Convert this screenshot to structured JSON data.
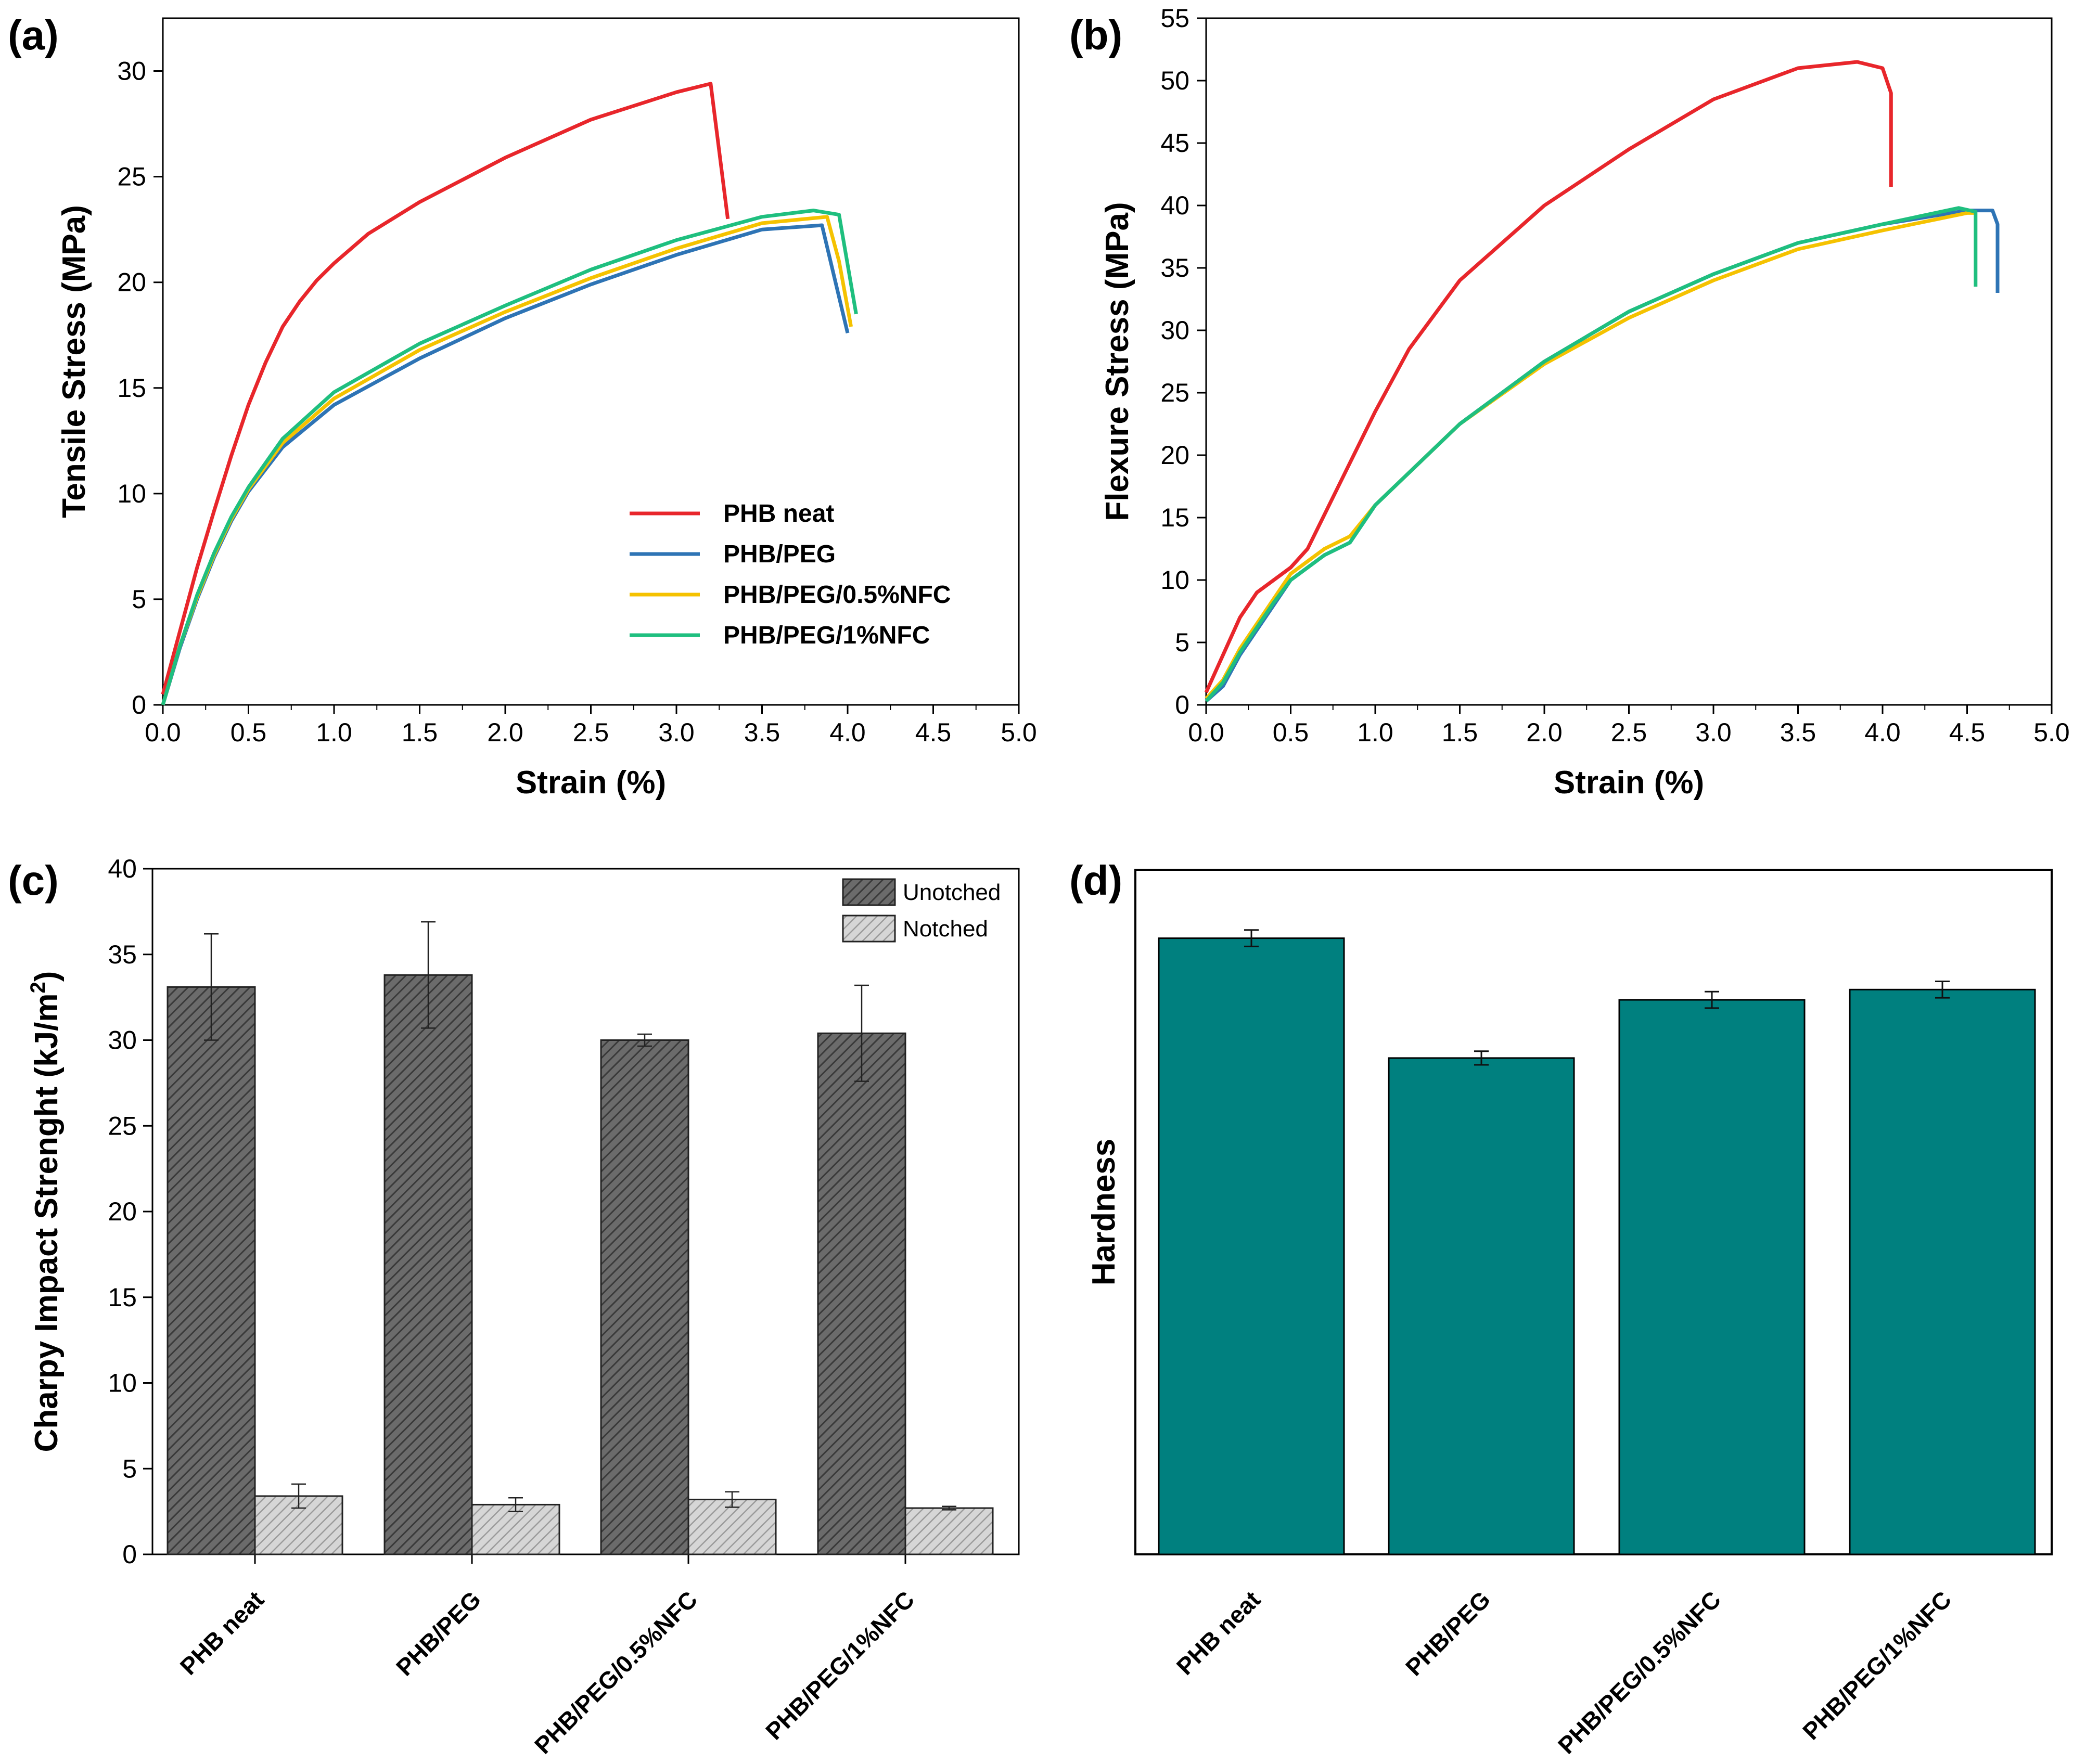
{
  "colors": {
    "phb_neat": "#e8262b",
    "phb_peg": "#2e74b5",
    "phb_peg_05nfc": "#f5c200",
    "phb_peg_1nfc": "#1fbf7f",
    "teal_bar": "#00807f",
    "dark_bar": "#5a5a5a",
    "light_bar": "#c9c9c9"
  },
  "chart_data": [
    {
      "panel": "(a)",
      "type": "line",
      "xlabel": "Strain (%)",
      "ylabel": "Tensile Stress (MPa)",
      "xlim": [
        0,
        5
      ],
      "ylim": [
        0,
        32.5
      ],
      "xticks": [
        0.0,
        0.5,
        1.0,
        1.5,
        2.0,
        2.5,
        3.0,
        3.5,
        4.0,
        4.5,
        5.0
      ],
      "xtick_labels": [
        "0.0",
        "0.5",
        "1.0",
        "1.5",
        "2.0",
        "2.5",
        "3.0",
        "3.5",
        "4.0",
        "4.5",
        "5.0"
      ],
      "yticks": [
        0,
        5,
        10,
        15,
        20,
        25,
        30
      ],
      "ytick_labels": [
        "0",
        "5",
        "10",
        "15",
        "20",
        "25",
        "30"
      ],
      "legend_position": "center-right",
      "series": [
        {
          "name": "PHB neat",
          "color_key": "phb_neat",
          "x": [
            0,
            0.1,
            0.2,
            0.3,
            0.4,
            0.5,
            0.6,
            0.7,
            0.8,
            0.9,
            1.0,
            1.2,
            1.5,
            2.0,
            2.5,
            3.0,
            3.2,
            3.3
          ],
          "y": [
            0.5,
            3.5,
            6.5,
            9.2,
            11.8,
            14.2,
            16.2,
            17.9,
            19.1,
            20.1,
            20.9,
            22.3,
            23.8,
            25.9,
            27.7,
            29.0,
            29.4,
            23.0
          ]
        },
        {
          "name": "PHB/PEG",
          "color_key": "phb_peg",
          "x": [
            0,
            0.1,
            0.2,
            0.3,
            0.4,
            0.5,
            0.7,
            1.0,
            1.5,
            2.0,
            2.5,
            3.0,
            3.5,
            3.85,
            3.9,
            4.0
          ],
          "y": [
            0,
            2.7,
            5.0,
            7.0,
            8.7,
            10.1,
            12.2,
            14.2,
            16.4,
            18.3,
            19.9,
            21.3,
            22.5,
            22.7,
            21.0,
            17.6
          ]
        },
        {
          "name": "PHB/PEG/0.5%NFC",
          "color_key": "phb_peg_05nfc",
          "x": [
            0,
            0.1,
            0.2,
            0.3,
            0.4,
            0.5,
            0.7,
            1.0,
            1.5,
            2.0,
            2.5,
            3.0,
            3.5,
            3.88,
            3.95,
            4.02
          ],
          "y": [
            0,
            2.8,
            5.1,
            7.1,
            8.8,
            10.2,
            12.4,
            14.5,
            16.8,
            18.6,
            20.2,
            21.6,
            22.8,
            23.1,
            21.0,
            17.9
          ]
        },
        {
          "name": "PHB/PEG/1%NFC",
          "color_key": "phb_peg_1nfc",
          "x": [
            0,
            0.1,
            0.2,
            0.3,
            0.4,
            0.5,
            0.7,
            1.0,
            1.5,
            2.0,
            2.5,
            3.0,
            3.5,
            3.8,
            3.95,
            4.05
          ],
          "y": [
            0,
            2.8,
            5.2,
            7.2,
            8.9,
            10.3,
            12.6,
            14.8,
            17.1,
            18.9,
            20.6,
            22.0,
            23.1,
            23.4,
            23.2,
            18.5
          ]
        }
      ]
    },
    {
      "panel": "(b)",
      "type": "line",
      "xlabel": "Strain (%)",
      "ylabel": "Flexure Stress (MPa)",
      "xlim": [
        0,
        5
      ],
      "ylim": [
        0,
        55
      ],
      "xticks": [
        0.0,
        0.5,
        1.0,
        1.5,
        2.0,
        2.5,
        3.0,
        3.5,
        4.0,
        4.5,
        5.0
      ],
      "xtick_labels": [
        "0.0",
        "0.5",
        "1.0",
        "1.5",
        "2.0",
        "2.5",
        "3.0",
        "3.5",
        "4.0",
        "4.5",
        "5.0"
      ],
      "yticks": [
        0,
        5,
        10,
        15,
        20,
        25,
        30,
        35,
        40,
        45,
        50,
        55
      ],
      "ytick_labels": [
        "0",
        "5",
        "10",
        "15",
        "20",
        "25",
        "30",
        "35",
        "40",
        "45",
        "50",
        "55"
      ],
      "series": [
        {
          "name": "PHB neat",
          "color_key": "phb_neat",
          "x": [
            0,
            0.1,
            0.2,
            0.3,
            0.4,
            0.5,
            0.6,
            0.8,
            1.0,
            1.2,
            1.5,
            2.0,
            2.5,
            3.0,
            3.5,
            3.85,
            4.0,
            4.05,
            4.05
          ],
          "y": [
            1.0,
            4.0,
            7.0,
            9.0,
            10.0,
            11.0,
            12.5,
            18.0,
            23.5,
            28.5,
            34.0,
            40.0,
            44.5,
            48.5,
            51.0,
            51.5,
            51.0,
            49.0,
            41.5
          ]
        },
        {
          "name": "PHB/PEG",
          "color_key": "phb_peg",
          "x": [
            0,
            0.1,
            0.2,
            0.3,
            0.4,
            0.5,
            0.6,
            0.7,
            0.85,
            1.0,
            1.5,
            2.0,
            2.5,
            3.0,
            3.5,
            4.0,
            4.5,
            4.65,
            4.68,
            4.68
          ],
          "y": [
            0.3,
            1.5,
            4.0,
            6.0,
            8.0,
            10.0,
            11.0,
            12.0,
            13.0,
            16.0,
            22.5,
            27.5,
            31.5,
            34.5,
            37.0,
            38.5,
            39.6,
            39.6,
            38.5,
            33.0
          ]
        },
        {
          "name": "PHB/PEG/0.5%NFC",
          "color_key": "phb_peg_05nfc",
          "x": [
            0,
            0.1,
            0.2,
            0.3,
            0.4,
            0.5,
            0.6,
            0.7,
            0.85,
            1.0,
            1.5,
            2.0,
            2.5,
            3.0,
            3.5,
            4.0,
            4.5,
            4.55
          ],
          "y": [
            0.5,
            2.0,
            4.5,
            6.5,
            8.5,
            10.5,
            11.5,
            12.5,
            13.5,
            16.0,
            22.5,
            27.3,
            31.0,
            34.0,
            36.5,
            38.0,
            39.4,
            39.4
          ]
        },
        {
          "name": "PHB/PEG/1%NFC",
          "color_key": "phb_peg_1nfc",
          "x": [
            0,
            0.1,
            0.2,
            0.3,
            0.4,
            0.5,
            0.6,
            0.7,
            0.85,
            1.0,
            1.5,
            2.0,
            2.5,
            3.0,
            3.5,
            4.0,
            4.45,
            4.55,
            4.55
          ],
          "y": [
            0.3,
            1.8,
            4.2,
            6.2,
            8.2,
            10.0,
            11.0,
            12.0,
            13.0,
            16.0,
            22.5,
            27.5,
            31.5,
            34.5,
            37.0,
            38.5,
            39.8,
            39.5,
            33.5
          ]
        }
      ]
    },
    {
      "panel": "(c)",
      "type": "bar",
      "ylabel": "Charpy Impact Strenght (kJ/m",
      "ylabel_sup": "2",
      "ylabel_end": ")",
      "categories": [
        "PHB neat",
        "PHB/PEG",
        "PHB/PEG/0.5%NFC",
        "PHB/PEG/1%NFC"
      ],
      "ylim": [
        0,
        40
      ],
      "yticks": [
        0,
        5,
        10,
        15,
        20,
        25,
        30,
        35,
        40
      ],
      "ytick_labels": [
        "0",
        "5",
        "10",
        "15",
        "20",
        "25",
        "30",
        "35",
        "40"
      ],
      "legend_position": "top-right",
      "series": [
        {
          "name": "Unotched",
          "values": [
            33.1,
            33.8,
            30.0,
            30.4
          ],
          "errors": [
            3.1,
            3.1,
            0.35,
            2.8
          ]
        },
        {
          "name": "Notched",
          "values": [
            3.4,
            2.9,
            3.2,
            2.7
          ],
          "errors": [
            0.7,
            0.4,
            0.45,
            0.1
          ]
        }
      ]
    },
    {
      "panel": "(d)",
      "type": "bar",
      "ylabel": "Hardness",
      "categories": [
        "PHB neat",
        "PHB/PEG",
        "PHB/PEG/0.5%NFC",
        "PHB/PEG/1%NFC"
      ],
      "values": [
        0.9,
        0.725,
        0.81,
        0.825
      ],
      "errors": [
        0.012,
        0.01,
        0.012,
        0.012
      ],
      "value_scale_note": "no numeric tick labels shown; values are fraction of axis height"
    }
  ]
}
